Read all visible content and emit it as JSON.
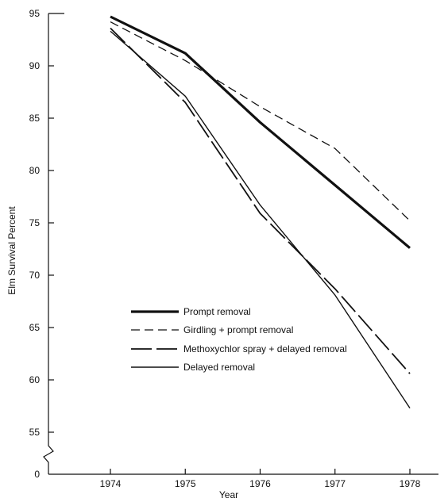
{
  "chart_data": {
    "type": "line",
    "title": "",
    "xlabel": "Year",
    "ylabel": "Elm Survival Percent",
    "x": [
      1974,
      1975,
      1976,
      1977,
      1978
    ],
    "x_tick_labels": [
      "1974",
      "1975",
      "1976",
      "1977",
      "1978"
    ],
    "y_tick_labels": [
      "95",
      "90",
      "85",
      "80",
      "75",
      "70",
      "65",
      "60",
      "55",
      "0"
    ],
    "ylim": [
      55,
      95
    ],
    "y_axis_break": "0",
    "grid": false,
    "legend_position": "lower-left",
    "series": [
      {
        "name": "Prompt removal",
        "style": "thick-solid",
        "color": "#111111",
        "values": [
          94.7,
          91.2,
          84.6,
          78.6,
          72.6
        ]
      },
      {
        "name": "Girdling + prompt removal",
        "style": "short-dash",
        "color": "#111111",
        "values": [
          94.2,
          90.5,
          86.1,
          82.1,
          75.2
        ]
      },
      {
        "name": "Methoxychlor spray + delayed removal",
        "style": "long-dash",
        "color": "#111111",
        "values": [
          93.6,
          86.5,
          75.9,
          68.7,
          60.6
        ]
      },
      {
        "name": "Delayed removal",
        "style": "thin-solid",
        "color": "#111111",
        "values": [
          93.3,
          87.1,
          76.7,
          68.1,
          57.3
        ]
      }
    ]
  }
}
